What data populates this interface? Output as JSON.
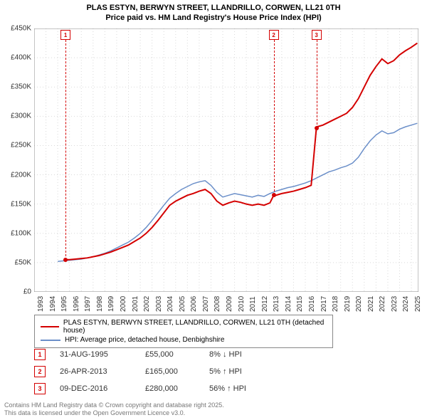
{
  "title_line1": "PLAS ESTYN, BERWYN STREET, LLANDRILLO, CORWEN, LL21 0TH",
  "title_line2": "Price paid vs. HM Land Registry's House Price Index (HPI)",
  "chart": {
    "type": "line",
    "background_color": "#ffffff",
    "grid_color": "#d9d9d9",
    "border_color": "#888888",
    "x_years": [
      1993,
      1994,
      1995,
      1996,
      1997,
      1998,
      1999,
      2000,
      2001,
      2002,
      2003,
      2004,
      2005,
      2006,
      2007,
      2008,
      2009,
      2010,
      2011,
      2012,
      2013,
      2014,
      2015,
      2016,
      2017,
      2018,
      2019,
      2020,
      2021,
      2022,
      2023,
      2024,
      2025
    ],
    "y_ticks": [
      0,
      50000,
      100000,
      150000,
      200000,
      250000,
      300000,
      350000,
      400000,
      450000
    ],
    "y_tick_labels": [
      "£0",
      "£50K",
      "£100K",
      "£150K",
      "£200K",
      "£250K",
      "£300K",
      "£350K",
      "£400K",
      "£450K"
    ],
    "ylim": [
      0,
      450000
    ],
    "xlim": [
      1993,
      2025.6
    ],
    "axis_fontsize": 10,
    "title_fontsize": 11,
    "series_red": {
      "label": "PLAS ESTYN, BERWYN STREET, LLANDRILLO, CORWEN, LL21 0TH (detached house)",
      "color": "#d40000",
      "line_width": 2,
      "points": [
        [
          1995.66,
          55000
        ],
        [
          1996,
          55000
        ],
        [
          1996.5,
          56000
        ],
        [
          1997,
          57000
        ],
        [
          1997.5,
          58000
        ],
        [
          1998,
          60000
        ],
        [
          1998.5,
          62000
        ],
        [
          1999,
          65000
        ],
        [
          1999.5,
          68000
        ],
        [
          2000,
          72000
        ],
        [
          2000.5,
          76000
        ],
        [
          2001,
          80000
        ],
        [
          2001.5,
          86000
        ],
        [
          2002,
          92000
        ],
        [
          2002.5,
          100000
        ],
        [
          2003,
          110000
        ],
        [
          2003.5,
          122000
        ],
        [
          2004,
          135000
        ],
        [
          2004.5,
          148000
        ],
        [
          2005,
          155000
        ],
        [
          2005.5,
          160000
        ],
        [
          2006,
          165000
        ],
        [
          2006.5,
          168000
        ],
        [
          2007,
          172000
        ],
        [
          2007.5,
          175000
        ],
        [
          2008,
          168000
        ],
        [
          2008.5,
          155000
        ],
        [
          2009,
          148000
        ],
        [
          2009.5,
          152000
        ],
        [
          2010,
          155000
        ],
        [
          2010.5,
          153000
        ],
        [
          2011,
          150000
        ],
        [
          2011.5,
          148000
        ],
        [
          2012,
          150000
        ],
        [
          2012.5,
          148000
        ],
        [
          2013,
          152000
        ],
        [
          2013.32,
          165000
        ],
        [
          2013.5,
          165000
        ],
        [
          2014,
          168000
        ],
        [
          2014.5,
          170000
        ],
        [
          2015,
          172000
        ],
        [
          2015.5,
          175000
        ],
        [
          2016,
          178000
        ],
        [
          2016.5,
          182000
        ],
        [
          2016.94,
          280000
        ],
        [
          2017,
          282000
        ],
        [
          2017.5,
          285000
        ],
        [
          2018,
          290000
        ],
        [
          2018.5,
          295000
        ],
        [
          2019,
          300000
        ],
        [
          2019.5,
          305000
        ],
        [
          2020,
          315000
        ],
        [
          2020.5,
          330000
        ],
        [
          2021,
          350000
        ],
        [
          2021.5,
          370000
        ],
        [
          2022,
          385000
        ],
        [
          2022.5,
          398000
        ],
        [
          2023,
          390000
        ],
        [
          2023.5,
          395000
        ],
        [
          2024,
          405000
        ],
        [
          2024.5,
          412000
        ],
        [
          2025,
          418000
        ],
        [
          2025.5,
          425000
        ]
      ]
    },
    "series_blue": {
      "label": "HPI: Average price, detached house, Denbighshire",
      "color": "#6b8fc9",
      "line_width": 1.5,
      "points": [
        [
          1995,
          52000
        ],
        [
          1995.5,
          53000
        ],
        [
          1996,
          54000
        ],
        [
          1996.5,
          55000
        ],
        [
          1997,
          56000
        ],
        [
          1997.5,
          58000
        ],
        [
          1998,
          60000
        ],
        [
          1998.5,
          63000
        ],
        [
          1999,
          66000
        ],
        [
          1999.5,
          70000
        ],
        [
          2000,
          75000
        ],
        [
          2000.5,
          80000
        ],
        [
          2001,
          85000
        ],
        [
          2001.5,
          92000
        ],
        [
          2002,
          100000
        ],
        [
          2002.5,
          110000
        ],
        [
          2003,
          122000
        ],
        [
          2003.5,
          135000
        ],
        [
          2004,
          148000
        ],
        [
          2004.5,
          160000
        ],
        [
          2005,
          168000
        ],
        [
          2005.5,
          175000
        ],
        [
          2006,
          180000
        ],
        [
          2006.5,
          185000
        ],
        [
          2007,
          188000
        ],
        [
          2007.5,
          190000
        ],
        [
          2008,
          182000
        ],
        [
          2008.5,
          170000
        ],
        [
          2009,
          162000
        ],
        [
          2009.5,
          165000
        ],
        [
          2010,
          168000
        ],
        [
          2010.5,
          166000
        ],
        [
          2011,
          164000
        ],
        [
          2011.5,
          162000
        ],
        [
          2012,
          165000
        ],
        [
          2012.5,
          163000
        ],
        [
          2013,
          168000
        ],
        [
          2013.5,
          172000
        ],
        [
          2014,
          175000
        ],
        [
          2014.5,
          178000
        ],
        [
          2015,
          180000
        ],
        [
          2015.5,
          183000
        ],
        [
          2016,
          186000
        ],
        [
          2016.5,
          190000
        ],
        [
          2017,
          195000
        ],
        [
          2017.5,
          200000
        ],
        [
          2018,
          205000
        ],
        [
          2018.5,
          208000
        ],
        [
          2019,
          212000
        ],
        [
          2019.5,
          215000
        ],
        [
          2020,
          220000
        ],
        [
          2020.5,
          230000
        ],
        [
          2021,
          245000
        ],
        [
          2021.5,
          258000
        ],
        [
          2022,
          268000
        ],
        [
          2022.5,
          275000
        ],
        [
          2023,
          270000
        ],
        [
          2023.5,
          272000
        ],
        [
          2024,
          278000
        ],
        [
          2024.5,
          282000
        ],
        [
          2025,
          285000
        ],
        [
          2025.5,
          288000
        ]
      ]
    },
    "markers": [
      {
        "id": "1",
        "year": 1995.66,
        "price": 55000,
        "color": "#d40000"
      },
      {
        "id": "2",
        "year": 2013.32,
        "price": 165000,
        "color": "#d40000"
      },
      {
        "id": "3",
        "year": 2016.94,
        "price": 280000,
        "color": "#d40000"
      }
    ]
  },
  "legend": {
    "series1_color": "#d40000",
    "series2_color": "#6b8fc9"
  },
  "sales": [
    {
      "n": "1",
      "date": "31-AUG-1995",
      "price": "£55,000",
      "delta": "8% ↓ HPI",
      "color": "#d40000"
    },
    {
      "n": "2",
      "date": "26-APR-2013",
      "price": "£165,000",
      "delta": "5% ↑ HPI",
      "color": "#d40000"
    },
    {
      "n": "3",
      "date": "09-DEC-2016",
      "price": "£280,000",
      "delta": "56% ↑ HPI",
      "color": "#d40000"
    }
  ],
  "footer_line1": "Contains HM Land Registry data © Crown copyright and database right 2025.",
  "footer_line2": "This data is licensed under the Open Government Licence v3.0."
}
